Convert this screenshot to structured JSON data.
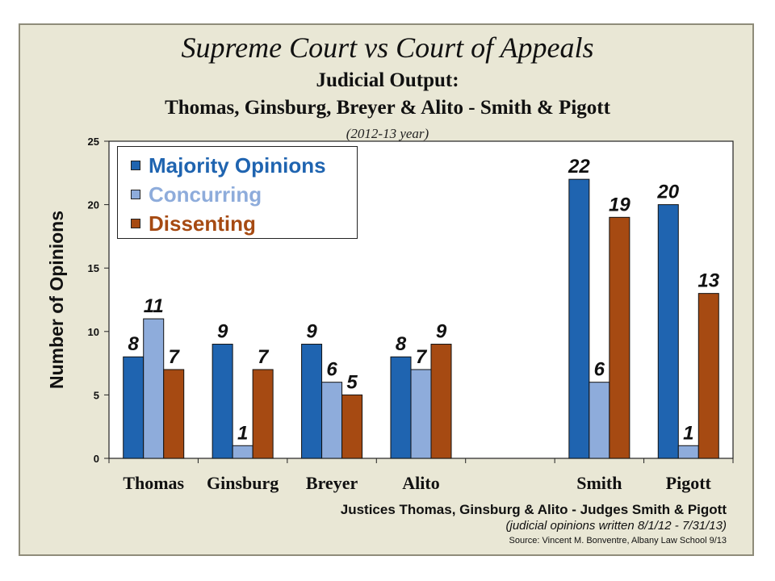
{
  "title": "Supreme Court vs Court of Appeals",
  "subtitle_line1": "Judicial Output:",
  "subtitle_line2": "Thomas,  Ginsburg,  Breyer & Alito - Smith & Pigott",
  "subtitle_line3": "(2012-13 year)",
  "footer": {
    "line1": "Justices Thomas, Ginsburg & Alito  - Judges Smith & Pigott",
    "line2": "(judicial opinions written 8/1/12 - 7/31/13)",
    "line3": "Source: Vincent M. Bonventre,  Albany Law School  9/13"
  },
  "colors": {
    "majority": "#1f64b0",
    "concurring": "#8eacdb",
    "dissenting": "#a64a12",
    "panel": "#e9e7d5",
    "plot": "#ffffff"
  },
  "chart_data": {
    "type": "bar",
    "ylabel": "Number of Opinions",
    "ylim": [
      0,
      25
    ],
    "yticks": [
      0,
      5,
      10,
      15,
      20,
      25
    ],
    "grid": false,
    "legend_position": "top-left",
    "categories": [
      "Thomas",
      "Ginsburg",
      "Breyer",
      "Alito",
      "",
      "Smith",
      "Pigott"
    ],
    "series": [
      {
        "name": "Majority Opinions",
        "color": "#1f64b0",
        "values": [
          8,
          9,
          9,
          8,
          null,
          22,
          20
        ]
      },
      {
        "name": "Concurring",
        "color": "#8eacdb",
        "values": [
          11,
          1,
          6,
          7,
          null,
          6,
          1
        ]
      },
      {
        "name": "Dissenting",
        "color": "#a64a12",
        "values": [
          7,
          7,
          5,
          9,
          null,
          19,
          13
        ]
      }
    ]
  }
}
